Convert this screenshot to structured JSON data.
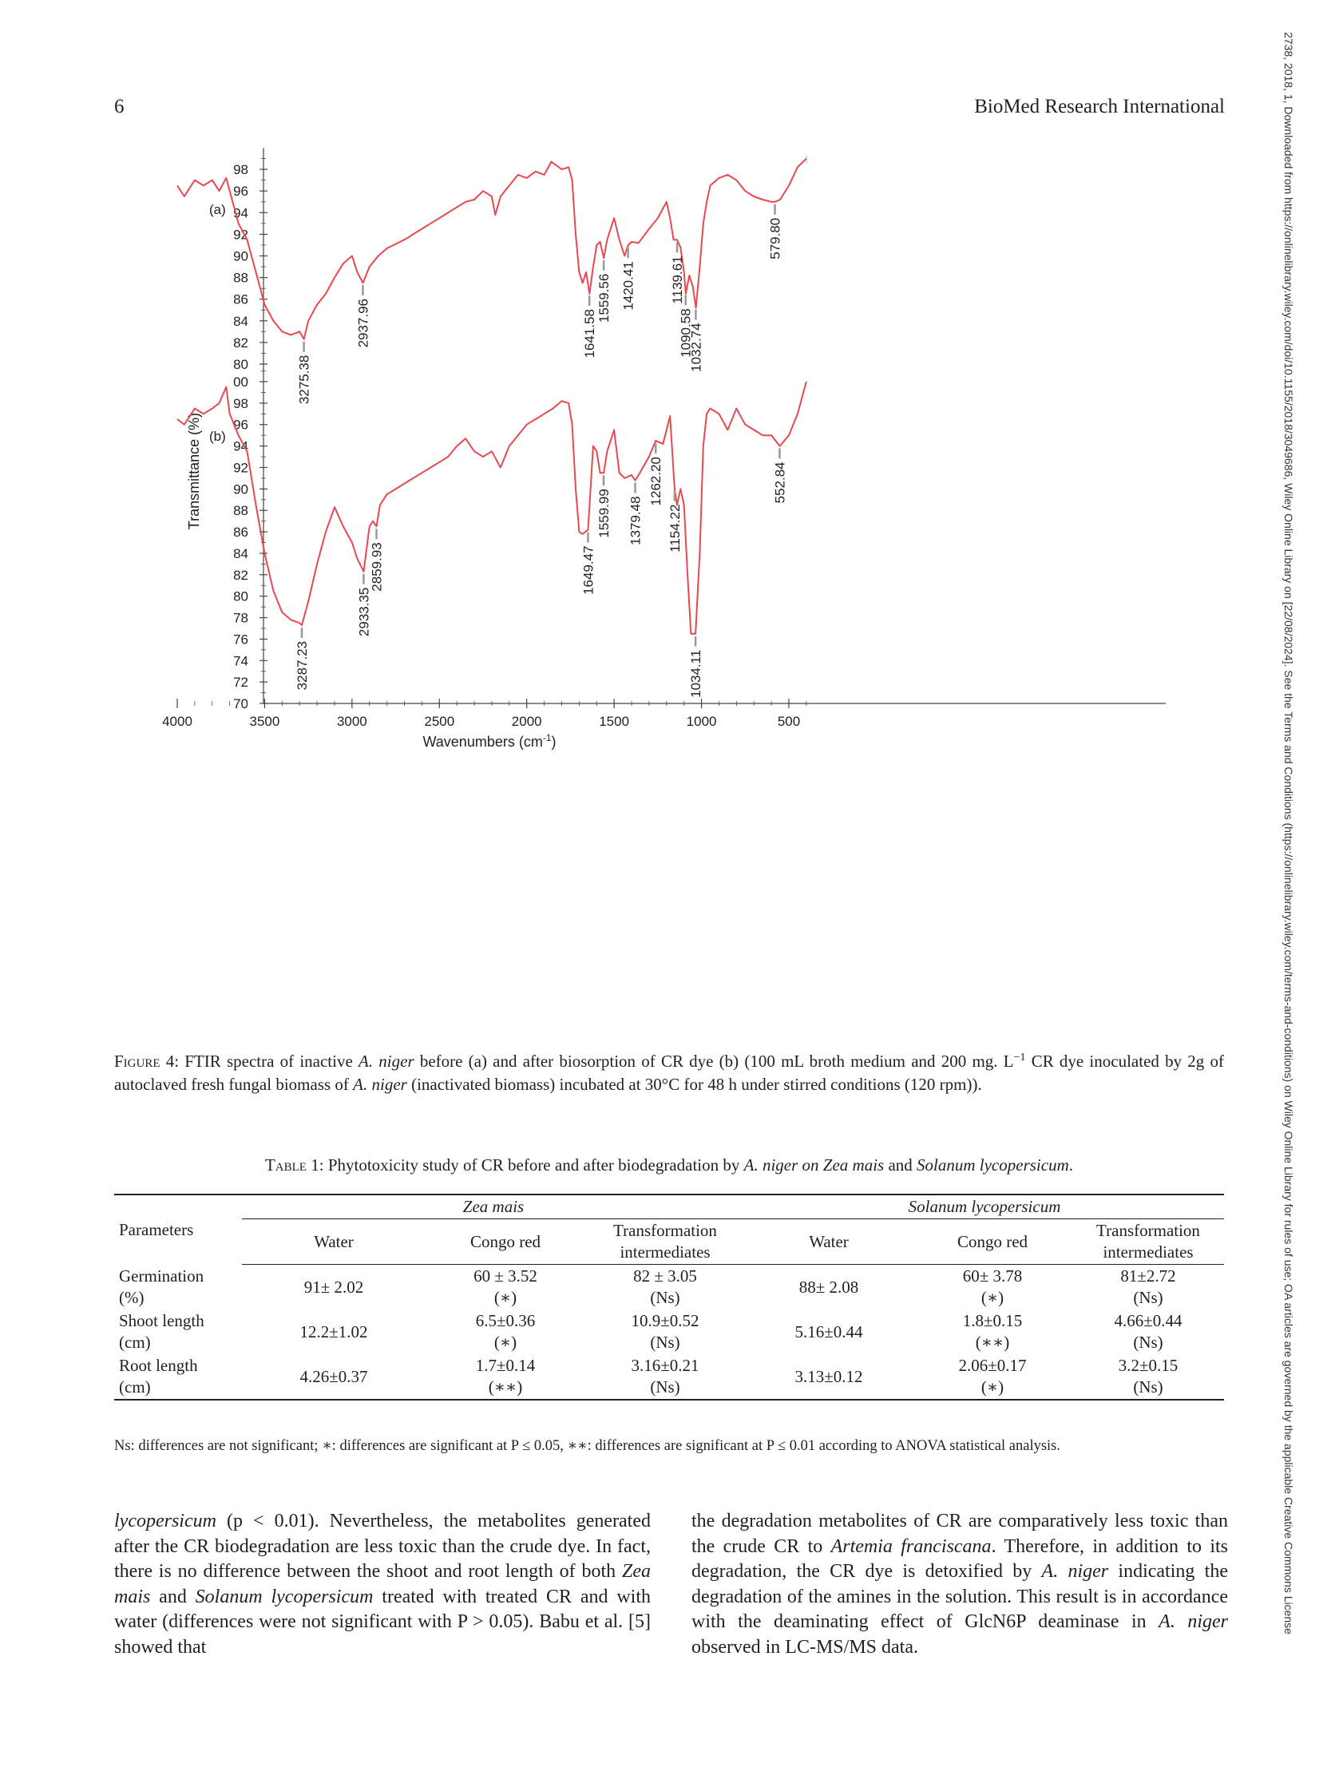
{
  "header": {
    "page_number": "6",
    "journal": "BioMed Research International"
  },
  "side_note": "2738, 2018, 1, Downloaded from https://onlinelibrary.wiley.com/doi/10.1155/2018/3049686, Wiley Online Library on [22/08/2024]. See the Terms and Conditions (https://onlinelibrary.wiley.com/terms-and-conditions) on Wiley Online Library for rules of use; OA articles are governed by the applicable Creative Commons License",
  "chart_data": {
    "type": "line",
    "xlabel": "Wavenumbers (cm",
    "xlabel_sup": "-1",
    "xlabel_end": ")",
    "ylabel": "Transmittance (%)",
    "xlim": [
      4000,
      350
    ],
    "x_ticks": [
      "4000",
      "3500",
      "3000",
      "2500",
      "2000",
      "1500",
      "1000",
      "500"
    ],
    "line_color": "#e8484f",
    "panels": [
      {
        "name": "(a)",
        "ylim": [
          80,
          100
        ],
        "y_ticks": [
          "80",
          "82",
          "84",
          "86",
          "88",
          "90",
          "92",
          "94",
          "96",
          "98",
          "100"
        ],
        "x": [
          4000,
          3960,
          3900,
          3850,
          3800,
          3760,
          3720,
          3700,
          3650,
          3600,
          3550,
          3500,
          3450,
          3400,
          3350,
          3300,
          3275,
          3250,
          3200,
          3150,
          3100,
          3050,
          3000,
          2970,
          2937,
          2900,
          2850,
          2800,
          2700,
          2600,
          2550,
          2500,
          2450,
          2400,
          2350,
          2300,
          2250,
          2200,
          2180,
          2150,
          2100,
          2050,
          2000,
          1950,
          1900,
          1860,
          1800,
          1760,
          1740,
          1720,
          1700,
          1680,
          1660,
          1641,
          1620,
          1600,
          1580,
          1559,
          1540,
          1500,
          1470,
          1440,
          1420,
          1400,
          1360,
          1300,
          1250,
          1200,
          1180,
          1160,
          1140,
          1120,
          1100,
          1090,
          1070,
          1050,
          1032,
          1010,
          990,
          970,
          950,
          900,
          850,
          800,
          750,
          700,
          650,
          600,
          580,
          550,
          500,
          450,
          400
        ],
        "y": [
          96.5,
          95.5,
          97,
          96.5,
          97,
          96,
          97.2,
          96,
          93,
          91.5,
          88.5,
          85.5,
          84,
          83,
          82.7,
          83,
          82.3,
          84,
          85.5,
          86.5,
          88,
          89.3,
          90,
          88.5,
          87.5,
          89,
          90,
          90.7,
          91.5,
          92.5,
          93,
          93.5,
          94,
          94.5,
          95,
          95.2,
          96,
          95.5,
          93.8,
          95.5,
          96.5,
          97.5,
          97.2,
          97.8,
          97.5,
          98.7,
          98,
          98.2,
          97,
          92,
          88.5,
          87.5,
          88.5,
          86.5,
          89,
          91,
          91.3,
          89.8,
          91.5,
          93.5,
          91.5,
          90,
          91,
          91.3,
          91.2,
          92.5,
          93.5,
          95,
          93.5,
          91.5,
          91.5,
          90.8,
          88.5,
          86.5,
          88.2,
          87.2,
          85.2,
          89,
          93,
          95,
          96.5,
          97.2,
          97.5,
          97,
          96,
          95.5,
          95.2,
          95,
          95,
          95.2,
          96.5,
          98.2,
          99
        ]
      },
      {
        "name": "(b)",
        "ylim": [
          70,
          100
        ],
        "y_ticks": [
          "70",
          "72",
          "74",
          "76",
          "78",
          "80",
          "82",
          "84",
          "86",
          "88",
          "90",
          "92",
          "94",
          "96",
          "98",
          "00"
        ],
        "x": [
          4000,
          3960,
          3900,
          3850,
          3800,
          3760,
          3720,
          3700,
          3650,
          3600,
          3550,
          3500,
          3450,
          3400,
          3350,
          3300,
          3287,
          3250,
          3200,
          3150,
          3100,
          3050,
          3000,
          2970,
          2933,
          2900,
          2880,
          2860,
          2840,
          2800,
          2700,
          2600,
          2550,
          2500,
          2450,
          2400,
          2350,
          2300,
          2250,
          2200,
          2150,
          2100,
          2050,
          2000,
          1950,
          1900,
          1850,
          1800,
          1760,
          1740,
          1720,
          1700,
          1680,
          1649,
          1620,
          1600,
          1580,
          1559,
          1540,
          1500,
          1470,
          1440,
          1400,
          1379,
          1360,
          1300,
          1262,
          1220,
          1200,
          1180,
          1154,
          1140,
          1120,
          1100,
          1080,
          1060,
          1034,
          1010,
          990,
          970,
          950,
          900,
          850,
          800,
          750,
          700,
          650,
          600,
          552,
          500,
          450,
          400
        ],
        "y": [
          96.5,
          96,
          97.5,
          97,
          97.5,
          98,
          99.5,
          97,
          95,
          93.5,
          88.5,
          84,
          80.5,
          78.5,
          77.8,
          77.5,
          77.3,
          79.5,
          83,
          86,
          88.3,
          86.5,
          85,
          83.5,
          82.3,
          86.5,
          87,
          86.5,
          88.5,
          89.5,
          90.5,
          91.5,
          92,
          92.5,
          93,
          94,
          94.7,
          93.5,
          93,
          93.5,
          92,
          94,
          95,
          96,
          96.5,
          97,
          97.5,
          98.2,
          98,
          96,
          90,
          86,
          85.8,
          86.2,
          94,
          93.5,
          91.5,
          91.5,
          93.5,
          95.5,
          91.5,
          91,
          91.3,
          90.8,
          91.3,
          93,
          94.5,
          94.2,
          95.5,
          96.8,
          90,
          88.5,
          90,
          88.5,
          82,
          76.5,
          76.5,
          84,
          94,
          97,
          97.5,
          97,
          95.5,
          97.5,
          96,
          95.5,
          95,
          95,
          94,
          95,
          97,
          100
        ]
      }
    ],
    "annotations": [
      {
        "text": "3275.38",
        "panel": 0
      },
      {
        "text": "2937.96",
        "panel": 0
      },
      {
        "text": "1641.58",
        "panel": 0
      },
      {
        "text": "1559.56",
        "panel": 0
      },
      {
        "text": "1420.41",
        "panel": 0
      },
      {
        "text": "1139.61",
        "panel": 0
      },
      {
        "text": "1090.58",
        "panel": 0
      },
      {
        "text": "1032.74",
        "panel": 0
      },
      {
        "text": "579.80",
        "panel": 0
      },
      {
        "text": "3287.23",
        "panel": 1
      },
      {
        "text": "2933.35",
        "panel": 1
      },
      {
        "text": "2859.93",
        "panel": 1
      },
      {
        "text": "1649.47",
        "panel": 1
      },
      {
        "text": "1559.99",
        "panel": 1
      },
      {
        "text": "1379.48",
        "panel": 1
      },
      {
        "text": "1262.20",
        "panel": 1
      },
      {
        "text": "1154.22",
        "panel": 1
      },
      {
        "text": "1034.11",
        "panel": 1
      },
      {
        "text": "552.84",
        "panel": 1
      }
    ]
  },
  "figure_caption": {
    "label": "Figure 4:",
    "t1": " FTIR spectra of inactive ",
    "i1": "A. niger",
    "t2": " before (a) and after biosorption of CR dye (b) (100 mL broth medium and 200 mg. L",
    "sup": "−1",
    "t3": " CR dye inoculated by 2g of autoclaved fresh fungal biomass of ",
    "i2": "A. niger",
    "t4": " (inactivated biomass) incubated at 30°C for 48 h under stirred conditions (120 rpm))."
  },
  "table_caption": {
    "label": "Table 1:",
    "t1": " Phytotoxicity study of CR before and after biodegradation by ",
    "i1": "A. niger on Zea mais",
    "t2": " and ",
    "i2": "Solanum lycopersicum",
    "t3": "."
  },
  "table": {
    "param_header": "Parameters",
    "group1": "Zea mais",
    "group2": "Solanum lycopersicum",
    "subheaders": [
      "Water",
      "Congo red",
      "Transformation intermediates",
      "Water",
      "Congo red",
      "Transformation intermediates"
    ],
    "rows": [
      {
        "param": [
          "Germination",
          "(%)"
        ],
        "cells": [
          [
            "91± 2.02"
          ],
          [
            "60 ± 3.52",
            "(∗)"
          ],
          [
            "82 ± 3.05",
            "(Ns)"
          ],
          [
            "88± 2.08"
          ],
          [
            "60± 3.78",
            "(∗)"
          ],
          [
            "81±2.72",
            "(Ns)"
          ]
        ]
      },
      {
        "param": [
          "Shoot length",
          "(cm)"
        ],
        "cells": [
          [
            "12.2±1.02"
          ],
          [
            "6.5±0.36",
            "(∗)"
          ],
          [
            "10.9±0.52",
            "(Ns)"
          ],
          [
            "5.16±0.44"
          ],
          [
            "1.8±0.15",
            "(∗∗)"
          ],
          [
            "4.66±0.44",
            "(Ns)"
          ]
        ]
      },
      {
        "param": [
          "Root length",
          "(cm)"
        ],
        "cells": [
          [
            "4.26±0.37"
          ],
          [
            "1.7±0.14",
            "(∗∗)"
          ],
          [
            "3.16±0.21",
            "(Ns)"
          ],
          [
            "3.13±0.12"
          ],
          [
            "2.06±0.17",
            "(∗)"
          ],
          [
            "3.2±0.15",
            "(Ns)"
          ]
        ]
      }
    ],
    "note": "Ns: differences are not significant; ∗: differences are significant at P ≤ 0.05, ∗∗: differences are significant at P ≤ 0.01 according to ANOVA statistical analysis."
  },
  "body_left": {
    "i1": "lycopersicum",
    "t1": " (p < 0.01). Nevertheless, the metabolites generated after the CR biodegradation are less toxic than the crude dye. In fact, there is no difference between the shoot and root length of both ",
    "i2": "Zea mais",
    "t2": " and ",
    "i3": "Solanum lycopersicum",
    "t3": " treated with treated CR and with water (differences were not significant with P > 0.05). Babu et al. [5] showed that"
  },
  "body_right": {
    "t1": "the degradation metabolites of CR are comparatively less toxic than the crude CR to ",
    "i1": "Artemia franciscana",
    "t2": ". Therefore, in addition to its degradation, the CR dye is detoxified by ",
    "i2": "A. niger",
    "t3": " indicating the degradation of the amines in the solution. This result is in accordance with the deaminating effect of GlcN6P deaminase in ",
    "i3": "A. niger",
    "t4": " observed in LC-MS/MS data."
  }
}
